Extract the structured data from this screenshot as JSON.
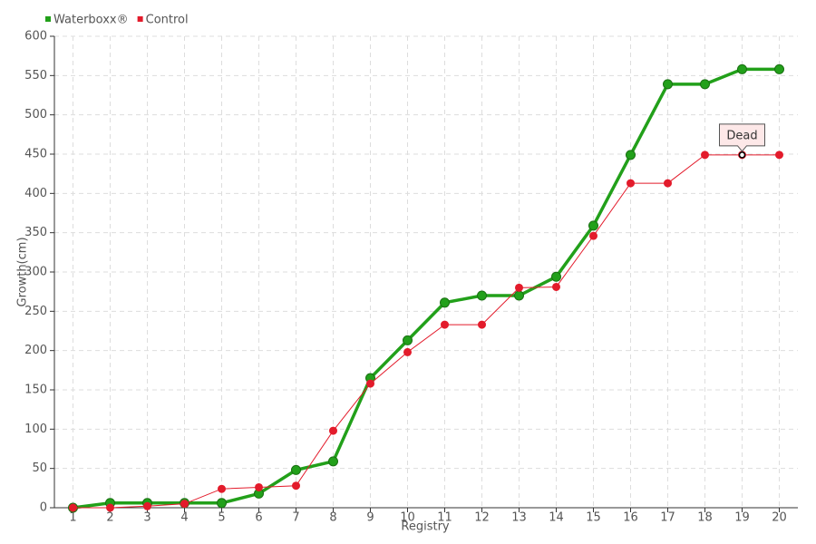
{
  "chart_data": {
    "type": "line",
    "x_label": "Registry",
    "y_label": "Growth(cm)",
    "x": [
      1,
      2,
      3,
      4,
      5,
      6,
      7,
      8,
      9,
      10,
      11,
      12,
      13,
      14,
      15,
      16,
      17,
      18,
      19,
      20
    ],
    "series": [
      {
        "name": "Waterboxx®",
        "color": "#22a01a",
        "values": [
          0,
          6,
          6,
          6,
          6,
          18,
          48,
          59,
          165,
          213,
          261,
          270,
          270,
          294,
          359,
          449,
          539,
          539,
          558,
          558
        ]
      },
      {
        "name": "Control",
        "color": "#e31b2b",
        "values": [
          0,
          0,
          2,
          5,
          24,
          26,
          28,
          98,
          158,
          198,
          233,
          233,
          280,
          281,
          346,
          413,
          413,
          449,
          449,
          449
        ]
      }
    ],
    "xlim": [
      0.5,
      20.5
    ],
    "xticks": [
      1,
      2,
      3,
      4,
      5,
      6,
      7,
      8,
      9,
      10,
      11,
      12,
      13,
      14,
      15,
      16,
      17,
      18,
      19,
      20
    ],
    "ylim": [
      0,
      600
    ],
    "yticks": [
      0,
      50,
      100,
      150,
      200,
      250,
      300,
      350,
      400,
      450,
      500,
      550,
      600
    ],
    "grid": true,
    "legend": "top-left",
    "annotations": [
      {
        "text": "Dead",
        "x": 19,
        "y": 449
      }
    ]
  }
}
